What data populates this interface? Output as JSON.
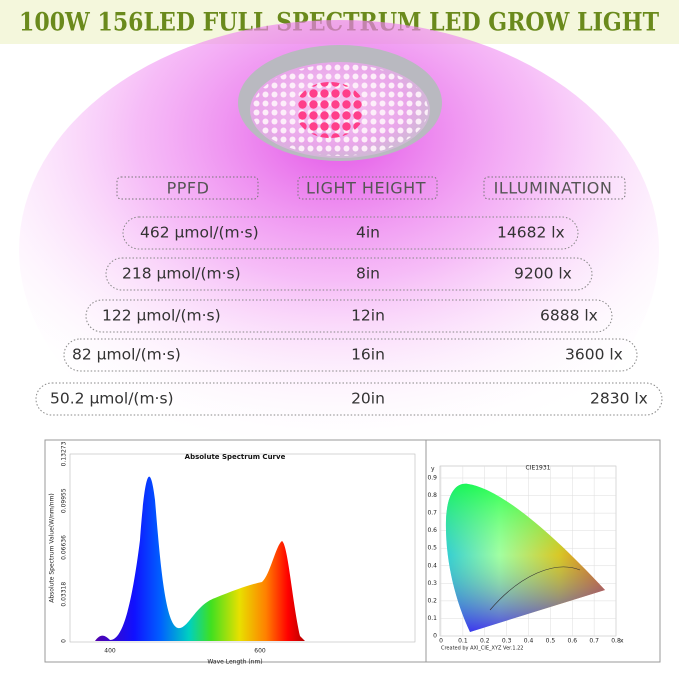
{
  "header": {
    "title": "100W 156LED FULL SPECTRUM LED GROW LIGHT"
  },
  "table": {
    "headers": [
      "PPFD",
      "LIGHT HEIGHT",
      "ILLUMINATION"
    ],
    "rows": [
      [
        "462 μmol/(m·s)",
        "4in",
        "14682 lx"
      ],
      [
        "218 μmol/(m·s)",
        "8in",
        "9200 lx"
      ],
      [
        "122 μmol/(m·s)",
        "12in",
        "6888 lx"
      ],
      [
        "82 μmol/(m·s)",
        "16in",
        "3600 lx"
      ],
      [
        "50.2 μmol/(m·s)",
        "20in",
        "2830 lx"
      ]
    ]
  },
  "spectrum": {
    "title": "Absolute Spectrum Curve",
    "y_label": "Absolute Spectrum Value(W/nm/nm)",
    "x_label": "Wave Length (nm)",
    "y_ticks": [
      "0",
      "0.03318",
      "0.06636",
      "0.09955",
      "0.13273"
    ],
    "x_ticks": [
      "400",
      "600"
    ]
  },
  "cie": {
    "title": "CIE1931",
    "y_axis": "y",
    "x_axis": "x",
    "y_ticks": [
      "0.9",
      "0.8",
      "0.7",
      "0.6",
      "0.5",
      "0.4",
      "0.3",
      "0.2",
      "0.1",
      "0"
    ],
    "x_ticks": [
      "0",
      "0.1",
      "0.2",
      "0.3",
      "0.4",
      "0.5",
      "0.6",
      "0.7",
      "0.8"
    ],
    "credit": "Created by AXI_CIE_XYZ Ver.1.22"
  }
}
